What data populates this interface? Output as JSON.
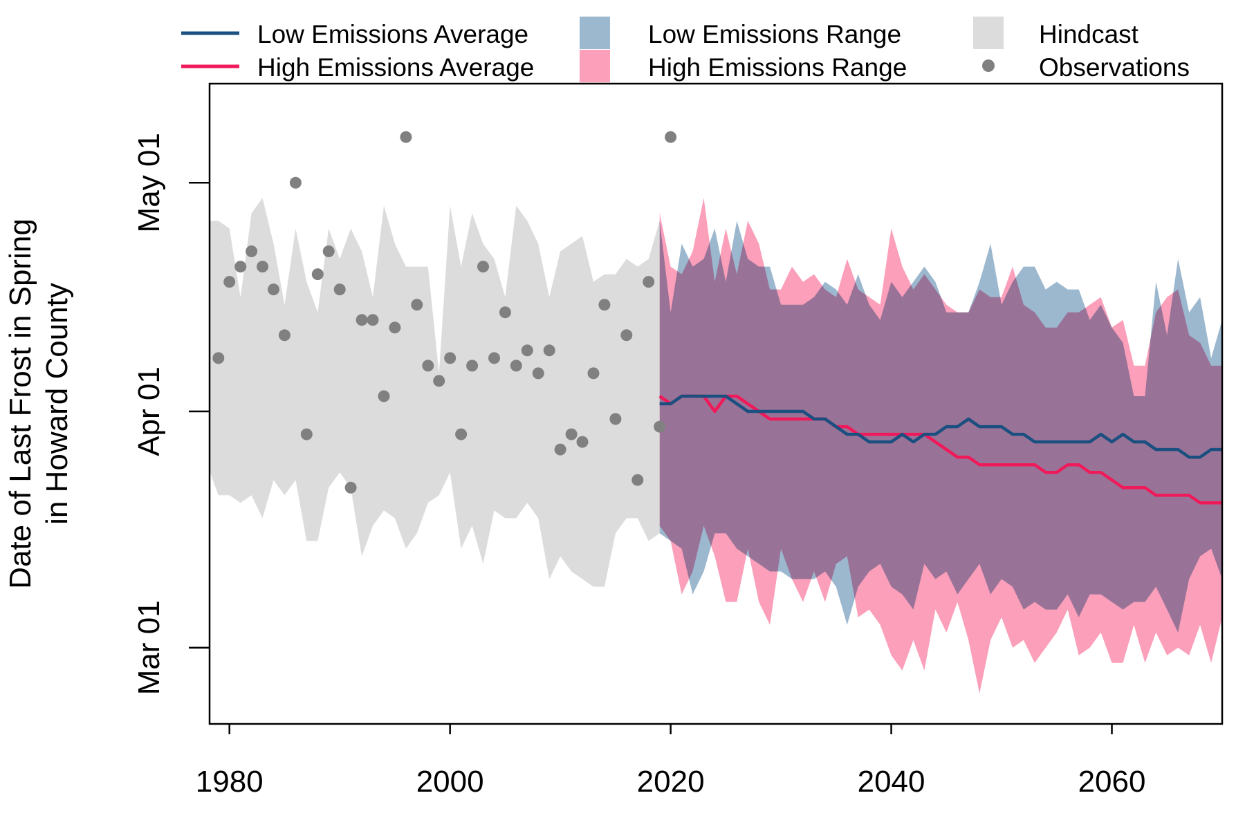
{
  "chart_data": {
    "type": "area",
    "ylabel": [
      "Date of Last Frost in Spring",
      "in Howard County"
    ],
    "x_tick_labels": [
      "1980",
      "2000",
      "2020",
      "2040",
      "2060"
    ],
    "x_ticks": [
      1980,
      2000,
      2020,
      2040,
      2060
    ],
    "y_tick_labels": [
      "Mar 01",
      "Apr 01",
      "May 01"
    ],
    "y_ticks": [
      "03-01",
      "04-01",
      "05-01"
    ],
    "xlim": [
      1978.2,
      2070
    ],
    "ylim": [
      "02-19",
      "05-14"
    ],
    "colors": {
      "low": "#1a4f80",
      "high": "#f0195a",
      "low_range": "#9cb8cf",
      "high_range": "#fb9fba",
      "overlap": "#9c82a4",
      "hindcast": "#dcdcdc",
      "observations": "#808080"
    },
    "legend": [
      {
        "label": "Low Emissions Average",
        "kind": "line",
        "color": "#1a4f80"
      },
      {
        "label": "High Emissions Average",
        "kind": "line",
        "color": "#f0195a"
      },
      {
        "label": "Low Emissions Range",
        "kind": "patch",
        "color": "#9cb8cf"
      },
      {
        "label": "High Emissions Range",
        "kind": "patch",
        "color": "#fb9fba"
      },
      {
        "label": "Hindcast",
        "kind": "patch",
        "color": "#dcdcdc"
      },
      {
        "label": "Observations",
        "kind": "point",
        "color": "#808080"
      }
    ],
    "hindcast": {
      "x": [
        1978,
        1979,
        1980,
        1981,
        1982,
        1983,
        1984,
        1985,
        1986,
        1987,
        1988,
        1989,
        1990,
        1991,
        1992,
        1993,
        1994,
        1995,
        1996,
        1997,
        1998,
        1999,
        2000,
        2001,
        2002,
        2003,
        2004,
        2005,
        2006,
        2007,
        2008,
        2009,
        2010,
        2011,
        2012,
        2013,
        2014,
        2015,
        2016,
        2017,
        2018,
        2019
      ],
      "high": [
        "04-26",
        "04-26",
        "04-25",
        "04-16",
        "04-27",
        "04-29",
        "04-23",
        "04-15",
        "04-25",
        "04-18",
        "04-14",
        "04-25",
        "04-21",
        "04-25",
        "04-22",
        "04-16",
        "04-28",
        "04-23",
        "04-20",
        "04-20",
        "04-20",
        "04-06",
        "04-28",
        "04-20",
        "04-27",
        "04-23",
        "04-21",
        "04-16",
        "04-28",
        "04-26",
        "04-23",
        "04-16",
        "04-22",
        "04-23",
        "04-24",
        "04-18",
        "04-19",
        "04-19",
        "04-21",
        "04-20",
        "04-21",
        "04-26"
      ],
      "low": [
        "03-25",
        "03-21",
        "03-21",
        "03-20",
        "03-21",
        "03-18",
        "03-23",
        "03-21",
        "03-23",
        "03-15",
        "03-15",
        "03-22",
        "03-24",
        "03-22",
        "03-13",
        "03-17",
        "03-19",
        "03-18",
        "03-14",
        "03-16",
        "03-20",
        "03-21",
        "03-24",
        "03-14",
        "03-17",
        "03-12",
        "03-19",
        "03-18",
        "03-18",
        "03-20",
        "03-18",
        "03-10",
        "03-13",
        "03-11",
        "03-10",
        "03-09",
        "03-09",
        "03-16",
        "03-18",
        "03-18",
        "03-15",
        "03-16"
      ]
    },
    "observations": {
      "x": [
        1979,
        1980,
        1981,
        1982,
        1983,
        1984,
        1985,
        1986,
        1987,
        1988,
        1989,
        1990,
        1991,
        1992,
        1993,
        1994,
        1995,
        1996,
        1997,
        1998,
        1999,
        2000,
        2001,
        2002,
        2003,
        2004,
        2005,
        2006,
        2007,
        2008,
        2009,
        2010,
        2011,
        2012,
        2013,
        2014,
        2015,
        2016,
        2017,
        2018,
        2019,
        2020
      ],
      "y": [
        "04-08",
        "04-18",
        "04-20",
        "04-22",
        "04-20",
        "04-17",
        "04-11",
        "05-01",
        "03-29",
        "04-19",
        "04-22",
        "04-17",
        "03-22",
        "04-13",
        "04-13",
        "04-03",
        "04-12",
        "05-07",
        "04-15",
        "04-07",
        "04-05",
        "04-08",
        "03-29",
        "04-07",
        "04-20",
        "04-08",
        "04-14",
        "04-07",
        "04-09",
        "04-06",
        "04-09",
        "03-27",
        "03-29",
        "03-28",
        "04-06",
        "04-15",
        "03-31",
        "04-11",
        "03-23",
        "04-18",
        "03-30",
        "05-07"
      ]
    },
    "low_emissions": {
      "x": [
        2019,
        2020,
        2021,
        2022,
        2023,
        2024,
        2025,
        2026,
        2027,
        2028,
        2029,
        2030,
        2031,
        2032,
        2033,
        2034,
        2035,
        2036,
        2037,
        2038,
        2039,
        2040,
        2041,
        2042,
        2043,
        2044,
        2045,
        2046,
        2047,
        2048,
        2049,
        2050,
        2051,
        2052,
        2053,
        2054,
        2055,
        2056,
        2057,
        2058,
        2059,
        2060,
        2061,
        2062,
        2063,
        2064,
        2065,
        2066,
        2067,
        2068,
        2069,
        2070
      ],
      "average": [
        "04-02",
        "04-02",
        "04-03",
        "04-03",
        "04-03",
        "04-03",
        "04-03",
        "04-02",
        "04-01",
        "04-01",
        "04-01",
        "04-01",
        "04-01",
        "04-01",
        "03-31",
        "03-31",
        "03-30",
        "03-29",
        "03-29",
        "03-28",
        "03-28",
        "03-28",
        "03-29",
        "03-28",
        "03-29",
        "03-29",
        "03-30",
        "03-30",
        "03-31",
        "03-30",
        "03-30",
        "03-30",
        "03-29",
        "03-29",
        "03-28",
        "03-28",
        "03-28",
        "03-28",
        "03-28",
        "03-28",
        "03-29",
        "03-28",
        "03-29",
        "03-28",
        "03-28",
        "03-27",
        "03-27",
        "03-27",
        "03-26",
        "03-26",
        "03-27",
        "03-27"
      ],
      "high": [
        "04-26",
        "04-14",
        "04-23",
        "04-20",
        "04-21",
        "04-25",
        "04-18",
        "04-26",
        "04-21",
        "04-20",
        "04-20",
        "04-15",
        "04-15",
        "04-15",
        "04-16",
        "04-18",
        "04-17",
        "04-15",
        "04-19",
        "04-15",
        "04-13",
        "04-18",
        "04-16",
        "04-18",
        "04-20",
        "04-18",
        "04-14",
        "04-14",
        "04-14",
        "04-18",
        "04-23",
        "04-15",
        "04-18",
        "04-20",
        "04-20",
        "04-17",
        "04-18",
        "04-17",
        "04-17",
        "04-13",
        "04-15",
        "04-12",
        "04-10",
        "04-03",
        "04-03",
        "04-18",
        "04-11",
        "04-21",
        "04-14",
        "04-16",
        "04-08",
        "04-13"
      ],
      "low": [
        "03-16",
        "03-15",
        "03-14",
        "03-08",
        "03-11",
        "03-16",
        "03-16",
        "03-14",
        "03-13",
        "03-12",
        "03-11",
        "03-11",
        "03-10",
        "03-10",
        "03-10",
        "03-11",
        "03-09",
        "03-04",
        "03-09",
        "03-11",
        "03-12",
        "03-09",
        "03-08",
        "03-06",
        "03-12",
        "03-10",
        "03-11",
        "03-08",
        "03-10",
        "03-12",
        "03-08",
        "03-10",
        "03-09",
        "03-06",
        "03-07",
        "03-06",
        "03-06",
        "03-08",
        "03-05",
        "03-08",
        "03-08",
        "03-07",
        "03-06",
        "03-07",
        "03-07",
        "03-09",
        "03-06",
        "03-03",
        "03-10",
        "03-13",
        "03-14",
        "03-10"
      ]
    },
    "high_emissions": {
      "x": [
        2019,
        2020,
        2021,
        2022,
        2023,
        2024,
        2025,
        2026,
        2027,
        2028,
        2029,
        2030,
        2031,
        2032,
        2033,
        2034,
        2035,
        2036,
        2037,
        2038,
        2039,
        2040,
        2041,
        2042,
        2043,
        2044,
        2045,
        2046,
        2047,
        2048,
        2049,
        2050,
        2051,
        2052,
        2053,
        2054,
        2055,
        2056,
        2057,
        2058,
        2059,
        2060,
        2061,
        2062,
        2063,
        2064,
        2065,
        2066,
        2067,
        2068,
        2069,
        2070
      ],
      "average": [
        "04-03",
        "04-02",
        "04-03",
        "04-03",
        "04-03",
        "04-01",
        "04-03",
        "04-03",
        "04-02",
        "04-01",
        "03-31",
        "03-31",
        "03-31",
        "03-31",
        "03-31",
        "03-31",
        "03-30",
        "03-30",
        "03-29",
        "03-29",
        "03-29",
        "03-29",
        "03-29",
        "03-29",
        "03-29",
        "03-28",
        "03-27",
        "03-26",
        "03-26",
        "03-25",
        "03-25",
        "03-25",
        "03-25",
        "03-25",
        "03-25",
        "03-24",
        "03-24",
        "03-25",
        "03-25",
        "03-24",
        "03-24",
        "03-23",
        "03-22",
        "03-22",
        "03-22",
        "03-21",
        "03-21",
        "03-21",
        "03-21",
        "03-20",
        "03-20",
        "03-20"
      ],
      "high": [
        "04-27",
        "04-20",
        "04-19",
        "04-22",
        "04-29",
        "04-18",
        "04-25",
        "04-19",
        "04-26",
        "04-23",
        "04-17",
        "04-17",
        "04-20",
        "04-18",
        "04-19",
        "04-17",
        "04-16",
        "04-21",
        "04-17",
        "04-16",
        "04-15",
        "04-25",
        "04-20",
        "04-17",
        "04-19",
        "04-17",
        "04-15",
        "04-14",
        "04-14",
        "04-17",
        "04-16",
        "04-16",
        "04-20",
        "04-15",
        "04-14",
        "04-12",
        "04-12",
        "04-14",
        "04-14",
        "04-15",
        "04-16",
        "04-12",
        "04-13",
        "04-07",
        "04-07",
        "04-14",
        "04-16",
        "04-17",
        "04-11",
        "04-10",
        "04-07",
        "04-07"
      ],
      "low": [
        "03-17",
        "03-15",
        "03-08",
        "03-11",
        "03-17",
        "03-13",
        "03-07",
        "03-07",
        "03-14",
        "03-07",
        "03-04",
        "03-14",
        "03-10",
        "03-07",
        "03-11",
        "03-07",
        "03-12",
        "03-13",
        "03-05",
        "03-06",
        "03-04",
        "02-28",
        "02-26",
        "03-02",
        "02-26",
        "03-06",
        "03-03",
        "03-07",
        "03-02",
        "02-23",
        "03-02",
        "03-05",
        "03-01",
        "03-02",
        "02-27",
        "03-01",
        "03-03",
        "03-06",
        "02-28",
        "03-01",
        "03-03",
        "02-27",
        "02-27",
        "03-04",
        "02-27",
        "03-03",
        "02-28",
        "03-01",
        "02-28",
        "03-04",
        "02-27",
        "03-05"
      ]
    }
  }
}
